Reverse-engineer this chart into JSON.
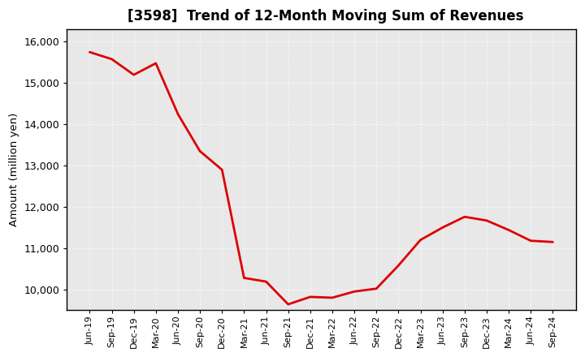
{
  "title": "[3598]  Trend of 12-Month Moving Sum of Revenues",
  "ylabel": "Amount (million yen)",
  "line_color": "#dd0000",
  "background_color": "#ffffff",
  "plot_bg_color": "#e8e8e8",
  "grid_color": "#ffffff",
  "grid_color2": "#bbbbbb",
  "ylim": [
    9500,
    16300
  ],
  "yticks": [
    10000,
    11000,
    12000,
    13000,
    14000,
    15000,
    16000
  ],
  "labels": [
    "Jun-19",
    "Sep-19",
    "Dec-19",
    "Mar-20",
    "Jun-20",
    "Sep-20",
    "Dec-20",
    "Mar-21",
    "Jun-21",
    "Sep-21",
    "Dec-21",
    "Mar-22",
    "Jun-22",
    "Sep-22",
    "Dec-22",
    "Mar-23",
    "Jun-23",
    "Sep-23",
    "Dec-23",
    "Mar-24",
    "Jun-24",
    "Sep-24"
  ],
  "values": [
    15750,
    15580,
    15200,
    15480,
    14250,
    13350,
    12900,
    10280,
    10190,
    9640,
    9820,
    9800,
    9950,
    10020,
    10580,
    11200,
    11500,
    11760,
    11670,
    11440,
    11180,
    11150
  ]
}
